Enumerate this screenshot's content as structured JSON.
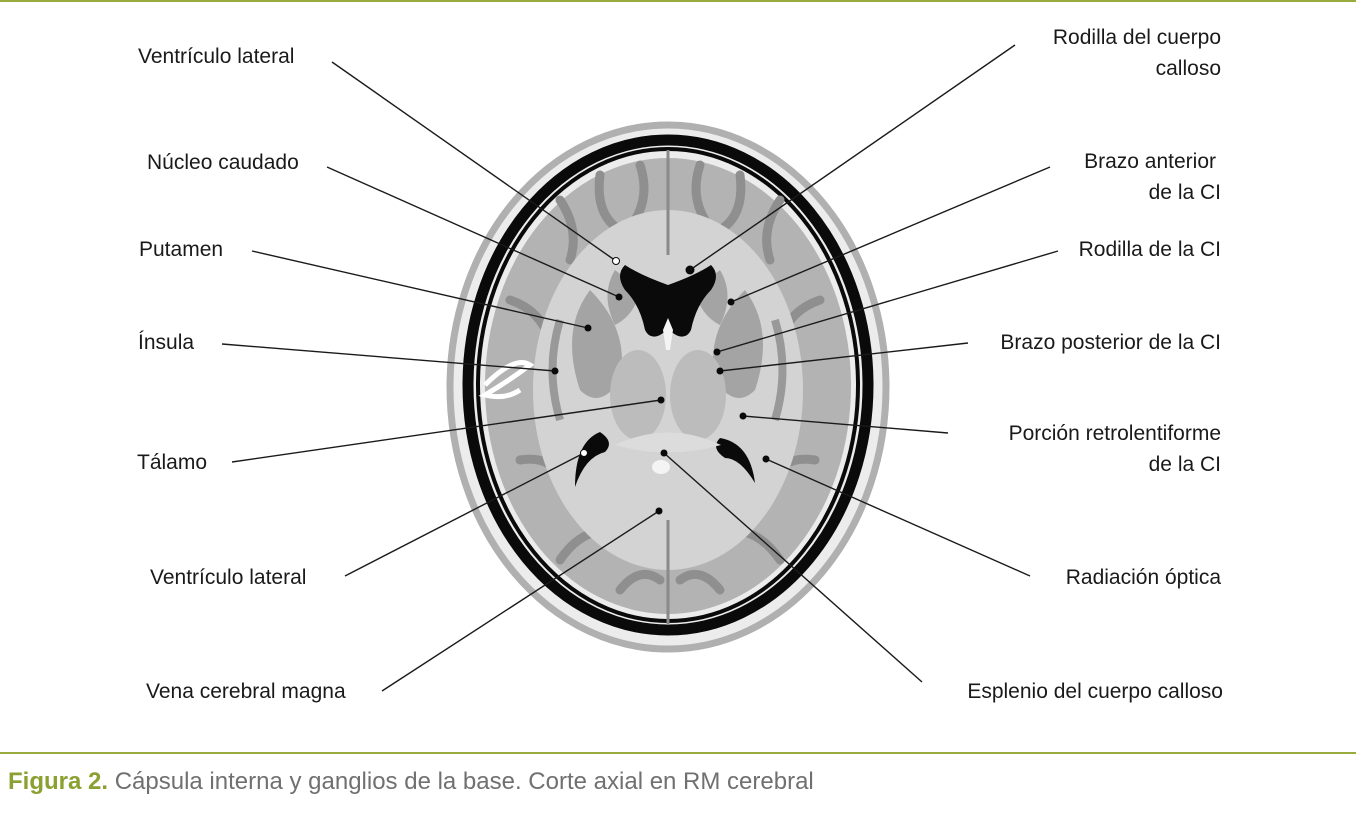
{
  "labels": {
    "left": [
      "Ventrículo lateral",
      "Núcleo caudado",
      "Putamen",
      "Ínsula",
      "Tálamo",
      "Ventrículo lateral",
      "Vena cerebral magna"
    ],
    "right": [
      [
        "Rodilla del cuerpo",
        "calloso"
      ],
      [
        "Brazo anterior",
        "de la CI"
      ],
      [
        "Rodilla de la CI"
      ],
      [
        "Brazo posterior de la CI"
      ],
      [
        "Porción retrolentiforme",
        "de la CI"
      ],
      [
        "Radiación óptica"
      ],
      [
        "Esplenio del cuerpo calloso"
      ]
    ]
  },
  "caption": {
    "number": "Figura 2.",
    "text": "Cápsula interna y ganglios de la base. Corte axial en RM cerebral"
  },
  "colors": {
    "accent_rule": "#9aab3d",
    "caption_number": "#8aa030",
    "caption_text": "#707070",
    "skull": "#0a0a0a",
    "gray_matter": "#a6a6a6",
    "white_matter": "#cfcfcf",
    "scalp": "#b5b5b5"
  }
}
